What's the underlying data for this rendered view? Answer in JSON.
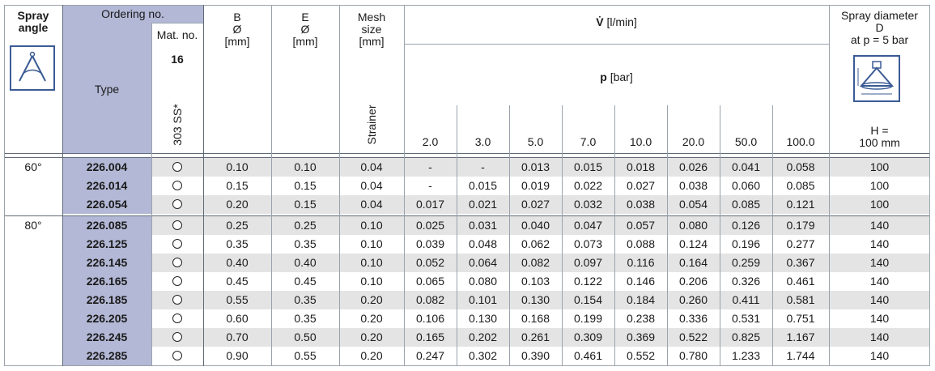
{
  "header": {
    "spray_angle": "Spray angle",
    "ordering_no": "Ordering no.",
    "mat_no": "Mat. no.",
    "mat_code": "16",
    "type": "Type",
    "material": "303 SS*",
    "b_label": "B",
    "b_sym": "Ø",
    "b_unit": "[mm]",
    "e_label": "E",
    "e_sym": "Ø",
    "e_unit": "[mm]",
    "mesh_label": "Mesh",
    "mesh_size": "size",
    "mesh_unit": "[mm]",
    "strainer": "Strainer",
    "vdot": "V̇",
    "vdot_unit": "[l/min]",
    "p": "p",
    "p_unit": "[bar]",
    "pressures": [
      "2.0",
      "3.0",
      "5.0",
      "7.0",
      "10.0",
      "20.0",
      "50.0",
      "100.0"
    ],
    "spray_diameter": "Spray diameter",
    "d_label": "D",
    "at_p": "at p = 5 bar",
    "h_eq": "H =",
    "h_val": "100 mm"
  },
  "groups": [
    {
      "angle": "60°",
      "rows": [
        {
          "type": "226.004",
          "b": "0.10",
          "e": "0.10",
          "mesh": "0.04",
          "flows": [
            "-",
            "-",
            "0.013",
            "0.015",
            "0.018",
            "0.026",
            "0.041",
            "0.058"
          ],
          "d": "100"
        },
        {
          "type": "226.014",
          "b": "0.15",
          "e": "0.15",
          "mesh": "0.04",
          "flows": [
            "-",
            "0.015",
            "0.019",
            "0.022",
            "0.027",
            "0.038",
            "0.060",
            "0.085"
          ],
          "d": "100"
        },
        {
          "type": "226.054",
          "b": "0.20",
          "e": "0.15",
          "mesh": "0.04",
          "flows": [
            "0.017",
            "0.021",
            "0.027",
            "0.032",
            "0.038",
            "0.054",
            "0.085",
            "0.121"
          ],
          "d": "100"
        }
      ]
    },
    {
      "angle": "80°",
      "rows": [
        {
          "type": "226.085",
          "b": "0.25",
          "e": "0.25",
          "mesh": "0.10",
          "flows": [
            "0.025",
            "0.031",
            "0.040",
            "0.047",
            "0.057",
            "0.080",
            "0.126",
            "0.179"
          ],
          "d": "140"
        },
        {
          "type": "226.125",
          "b": "0.35",
          "e": "0.35",
          "mesh": "0.10",
          "flows": [
            "0.039",
            "0.048",
            "0.062",
            "0.073",
            "0.088",
            "0.124",
            "0.196",
            "0.277"
          ],
          "d": "140"
        },
        {
          "type": "226.145",
          "b": "0.40",
          "e": "0.40",
          "mesh": "0.10",
          "flows": [
            "0.052",
            "0.064",
            "0.082",
            "0.097",
            "0.116",
            "0.164",
            "0.259",
            "0.367"
          ],
          "d": "140"
        },
        {
          "type": "226.165",
          "b": "0.45",
          "e": "0.45",
          "mesh": "0.10",
          "flows": [
            "0.065",
            "0.080",
            "0.103",
            "0.122",
            "0.146",
            "0.206",
            "0.326",
            "0.461"
          ],
          "d": "140"
        },
        {
          "type": "226.185",
          "b": "0.55",
          "e": "0.35",
          "mesh": "0.20",
          "flows": [
            "0.082",
            "0.101",
            "0.130",
            "0.154",
            "0.184",
            "0.260",
            "0.411",
            "0.581"
          ],
          "d": "140"
        },
        {
          "type": "226.205",
          "b": "0.60",
          "e": "0.35",
          "mesh": "0.20",
          "flows": [
            "0.106",
            "0.130",
            "0.168",
            "0.199",
            "0.238",
            "0.336",
            "0.531",
            "0.751"
          ],
          "d": "140"
        },
        {
          "type": "226.245",
          "b": "0.70",
          "e": "0.50",
          "mesh": "0.20",
          "flows": [
            "0.165",
            "0.202",
            "0.261",
            "0.309",
            "0.369",
            "0.522",
            "0.825",
            "1.167"
          ],
          "d": "140"
        },
        {
          "type": "226.285",
          "b": "0.90",
          "e": "0.55",
          "mesh": "0.20",
          "flows": [
            "0.247",
            "0.302",
            "0.390",
            "0.461",
            "0.552",
            "0.780",
            "1.233",
            "1.744"
          ],
          "d": "140"
        }
      ]
    }
  ],
  "icons": {
    "spray_angle_icon": "compass-angle-icon",
    "spray_diameter_icon": "spray-cone-diagram-icon"
  },
  "colors": {
    "type_col_bg": "#b3b8d6",
    "gray_row_bg": "#e4e4e4",
    "icon_border": "#3b5b95"
  }
}
